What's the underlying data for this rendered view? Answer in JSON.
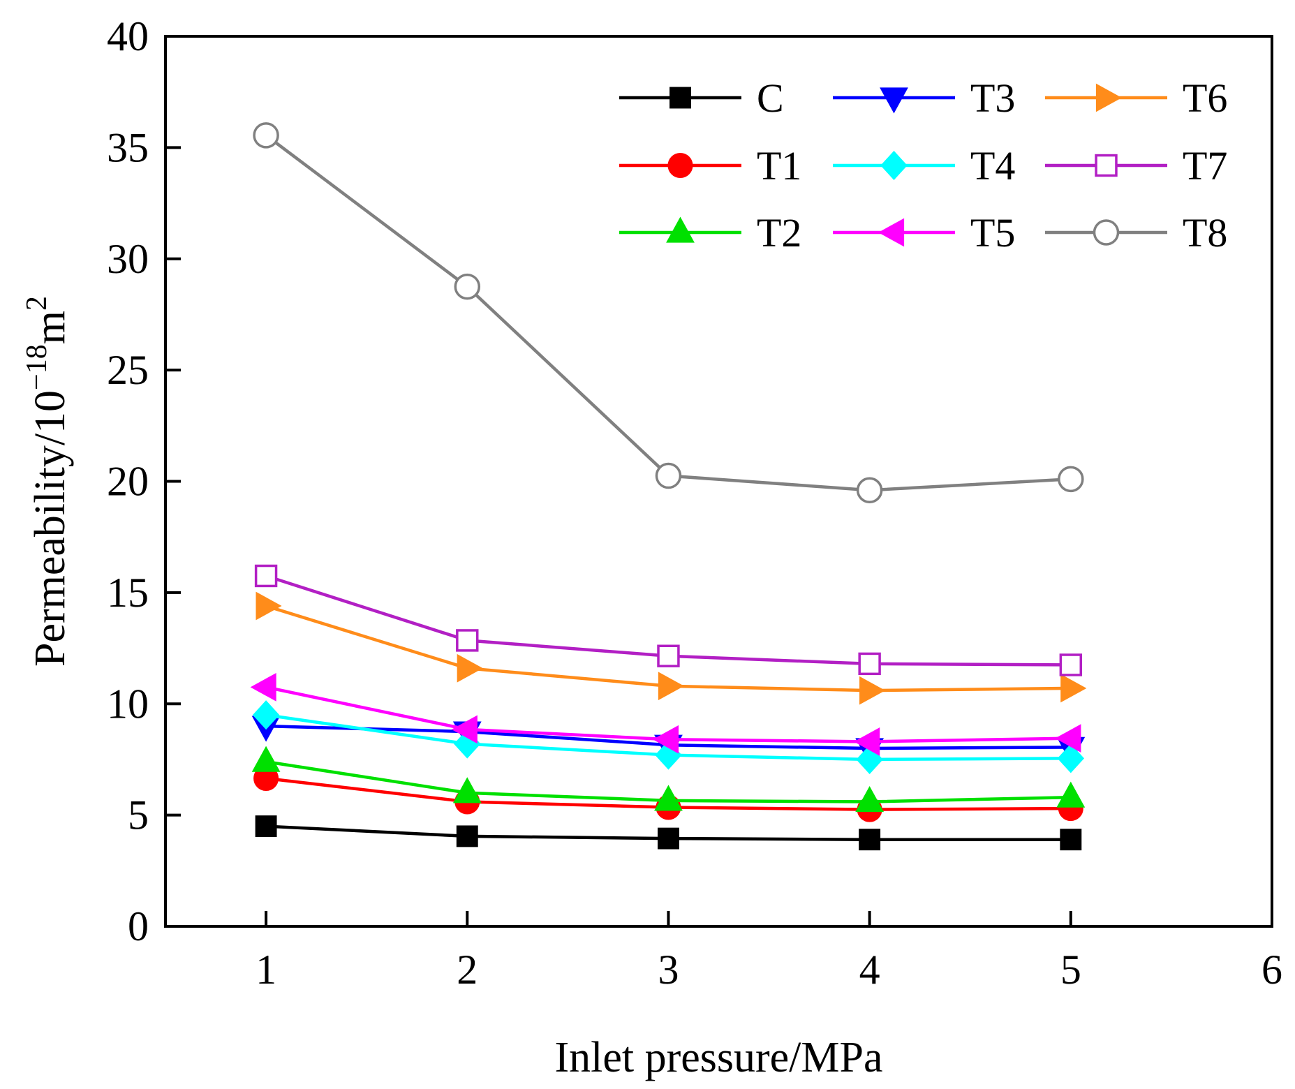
{
  "chart_data": {
    "type": "line",
    "title": "",
    "xlabel": "Inlet pressure/MPa",
    "ylabel": {
      "base": "Permeability/10",
      "sup1": "−18",
      "unit": "m",
      "sup2": "2"
    },
    "xlim": [
      0.5,
      6
    ],
    "ylim": [
      0,
      40
    ],
    "xticks": [
      1,
      2,
      3,
      4,
      5,
      6
    ],
    "yticks": [
      0,
      5,
      10,
      15,
      20,
      25,
      30,
      35,
      40
    ],
    "grid": false,
    "legend_position": "top-right",
    "x": [
      1,
      2,
      3,
      4,
      5
    ],
    "series": [
      {
        "name": "C",
        "color": "#000000",
        "marker": "square",
        "filled": true,
        "values": [
          4.5,
          4.05,
          3.95,
          3.9,
          3.9
        ]
      },
      {
        "name": "T1",
        "color": "#ff0000",
        "marker": "circle",
        "filled": true,
        "values": [
          6.65,
          5.6,
          5.35,
          5.25,
          5.3
        ]
      },
      {
        "name": "T2",
        "color": "#00e000",
        "marker": "triangle-up",
        "filled": true,
        "values": [
          7.4,
          6.0,
          5.65,
          5.6,
          5.8
        ]
      },
      {
        "name": "T3",
        "color": "#0000ff",
        "marker": "triangle-down",
        "filled": true,
        "values": [
          9.0,
          8.75,
          8.15,
          8.0,
          8.05
        ]
      },
      {
        "name": "T4",
        "color": "#00ffff",
        "marker": "diamond",
        "filled": true,
        "values": [
          9.5,
          8.2,
          7.7,
          7.5,
          7.55
        ]
      },
      {
        "name": "T5",
        "color": "#ff00ff",
        "marker": "triangle-left",
        "filled": true,
        "values": [
          10.75,
          8.85,
          8.4,
          8.3,
          8.45
        ]
      },
      {
        "name": "T6",
        "color": "#ff8c1a",
        "marker": "triangle-right",
        "filled": true,
        "values": [
          14.4,
          11.6,
          10.8,
          10.6,
          10.7
        ]
      },
      {
        "name": "T7",
        "color": "#b21fc4",
        "marker": "square",
        "filled": false,
        "values": [
          15.75,
          12.85,
          12.15,
          11.8,
          11.75
        ]
      },
      {
        "name": "T8",
        "color": "#808080",
        "marker": "circle",
        "filled": false,
        "values": [
          35.55,
          28.75,
          20.25,
          19.6,
          20.1
        ]
      }
    ]
  }
}
